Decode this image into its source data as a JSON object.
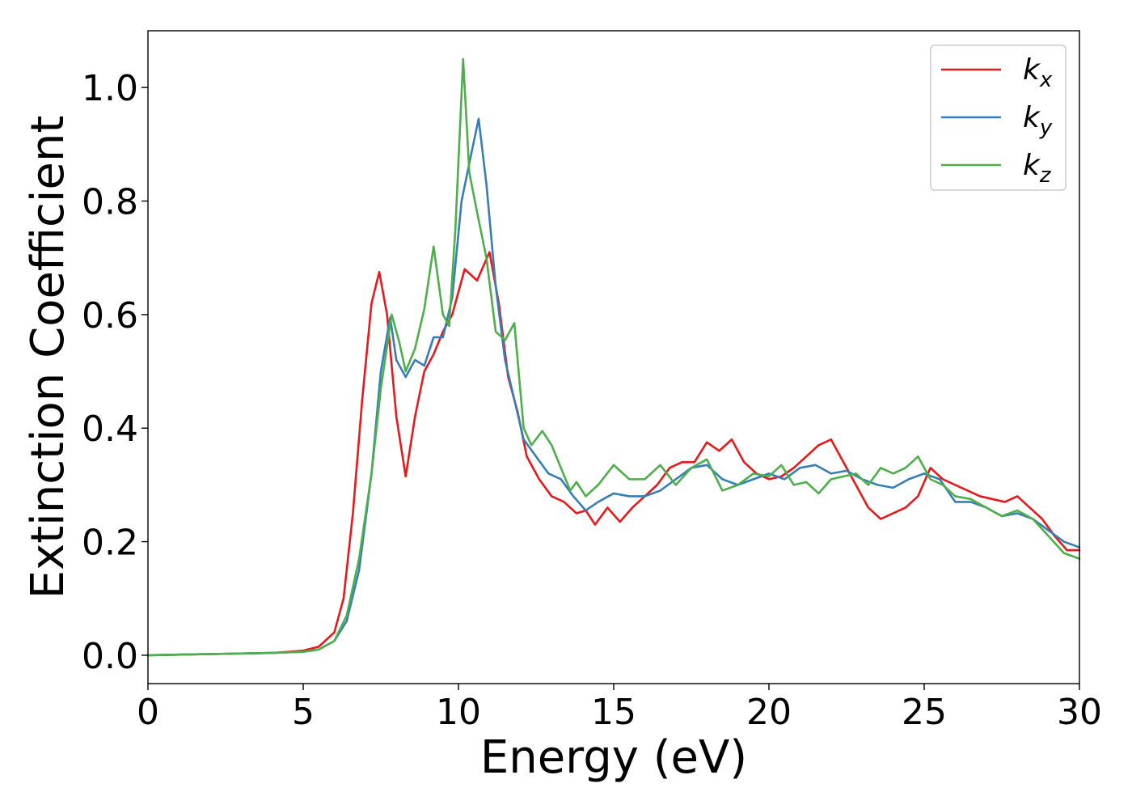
{
  "chart_data": {
    "type": "line",
    "title": "",
    "xlabel": "Energy (eV)",
    "ylabel": "Extinction Coefficient",
    "xlim": [
      0,
      30
    ],
    "ylim": [
      -0.05,
      1.1
    ],
    "xticks": [
      0,
      5,
      10,
      15,
      20,
      25,
      30
    ],
    "xtick_labels": [
      "0",
      "5",
      "10",
      "15",
      "20",
      "25",
      "30"
    ],
    "yticks": [
      0.0,
      0.2,
      0.4,
      0.6,
      0.8,
      1.0
    ],
    "ytick_labels": [
      "0.0",
      "0.2",
      "0.4",
      "0.6",
      "0.8",
      "1.0"
    ],
    "grid": false,
    "legend_position": "top-right",
    "series": [
      {
        "name": "k_x",
        "legend_main": "k",
        "legend_sub": "x",
        "color": "#e41a1c",
        "x": [
          0,
          2,
          4,
          5,
          5.5,
          6.0,
          6.3,
          6.6,
          6.9,
          7.2,
          7.45,
          7.7,
          8.0,
          8.3,
          8.6,
          8.9,
          9.2,
          9.5,
          9.8,
          10.2,
          10.6,
          11.0,
          11.3,
          11.6,
          11.9,
          12.2,
          12.6,
          13.0,
          13.4,
          13.8,
          14.1,
          14.4,
          14.8,
          15.2,
          15.6,
          16.0,
          16.4,
          16.8,
          17.2,
          17.6,
          18.0,
          18.4,
          18.8,
          19.2,
          19.6,
          20.0,
          20.4,
          20.8,
          21.2,
          21.6,
          22.0,
          22.4,
          22.8,
          23.2,
          23.6,
          24.0,
          24.4,
          24.8,
          25.2,
          25.6,
          26.0,
          26.4,
          26.8,
          27.2,
          27.6,
          28.0,
          28.4,
          28.8,
          29.2,
          29.6,
          30.0
        ],
        "y": [
          0.0,
          0.002,
          0.004,
          0.008,
          0.015,
          0.04,
          0.1,
          0.25,
          0.45,
          0.62,
          0.675,
          0.6,
          0.42,
          0.315,
          0.42,
          0.5,
          0.53,
          0.57,
          0.6,
          0.68,
          0.66,
          0.71,
          0.62,
          0.49,
          0.43,
          0.35,
          0.31,
          0.28,
          0.27,
          0.25,
          0.255,
          0.23,
          0.26,
          0.235,
          0.26,
          0.28,
          0.3,
          0.33,
          0.34,
          0.34,
          0.375,
          0.36,
          0.38,
          0.34,
          0.32,
          0.31,
          0.315,
          0.33,
          0.35,
          0.37,
          0.38,
          0.34,
          0.3,
          0.26,
          0.24,
          0.25,
          0.26,
          0.28,
          0.33,
          0.31,
          0.3,
          0.29,
          0.28,
          0.275,
          0.27,
          0.28,
          0.26,
          0.24,
          0.21,
          0.185,
          0.185
        ]
      },
      {
        "name": "k_y",
        "legend_main": "k",
        "legend_sub": "y",
        "color": "#377eb8",
        "x": [
          0,
          2,
          4,
          5,
          5.5,
          6.0,
          6.4,
          6.8,
          7.2,
          7.5,
          7.8,
          8.0,
          8.3,
          8.6,
          8.9,
          9.2,
          9.5,
          9.8,
          10.1,
          10.4,
          10.65,
          10.9,
          11.2,
          11.5,
          11.8,
          12.1,
          12.5,
          12.9,
          13.3,
          13.7,
          14.1,
          14.5,
          15.0,
          15.5,
          16.0,
          16.5,
          17.0,
          17.5,
          18.0,
          18.5,
          19.0,
          19.5,
          20.0,
          20.5,
          21.0,
          21.5,
          22.0,
          22.5,
          23.0,
          23.5,
          24.0,
          24.5,
          25.0,
          25.5,
          26.0,
          26.5,
          27.0,
          27.5,
          28.0,
          28.5,
          29.0,
          29.5,
          30.0
        ],
        "y": [
          0.0,
          0.002,
          0.004,
          0.006,
          0.01,
          0.025,
          0.06,
          0.15,
          0.32,
          0.5,
          0.595,
          0.52,
          0.49,
          0.52,
          0.51,
          0.56,
          0.56,
          0.63,
          0.8,
          0.88,
          0.945,
          0.83,
          0.65,
          0.52,
          0.45,
          0.38,
          0.35,
          0.32,
          0.31,
          0.28,
          0.255,
          0.27,
          0.285,
          0.28,
          0.28,
          0.29,
          0.31,
          0.33,
          0.335,
          0.31,
          0.3,
          0.31,
          0.32,
          0.31,
          0.33,
          0.335,
          0.32,
          0.325,
          0.31,
          0.3,
          0.295,
          0.31,
          0.32,
          0.31,
          0.27,
          0.27,
          0.26,
          0.245,
          0.25,
          0.24,
          0.22,
          0.2,
          0.19
        ]
      },
      {
        "name": "k_z",
        "legend_main": "k",
        "legend_sub": "z",
        "color": "#4daf4a",
        "x": [
          0,
          2,
          4,
          5,
          5.5,
          6.0,
          6.4,
          6.8,
          7.2,
          7.5,
          7.85,
          8.1,
          8.3,
          8.6,
          8.9,
          9.2,
          9.5,
          9.7,
          9.9,
          10.15,
          10.35,
          10.6,
          10.9,
          11.2,
          11.5,
          11.8,
          12.1,
          12.35,
          12.7,
          13.0,
          13.3,
          13.6,
          13.8,
          14.1,
          14.5,
          15.0,
          15.5,
          16.0,
          16.5,
          17.0,
          17.5,
          18.0,
          18.5,
          19.0,
          19.5,
          20.0,
          20.4,
          20.8,
          21.2,
          21.6,
          22.0,
          22.4,
          22.8,
          23.2,
          23.6,
          24.0,
          24.4,
          24.8,
          25.2,
          25.6,
          26.0,
          26.5,
          27.0,
          27.5,
          28.0,
          28.5,
          29.0,
          29.5,
          30.0
        ],
        "y": [
          0.0,
          0.002,
          0.004,
          0.006,
          0.01,
          0.025,
          0.07,
          0.17,
          0.32,
          0.47,
          0.6,
          0.55,
          0.5,
          0.54,
          0.61,
          0.72,
          0.6,
          0.58,
          0.75,
          1.05,
          0.85,
          0.78,
          0.7,
          0.57,
          0.555,
          0.585,
          0.4,
          0.37,
          0.395,
          0.37,
          0.33,
          0.29,
          0.305,
          0.28,
          0.3,
          0.335,
          0.31,
          0.31,
          0.335,
          0.3,
          0.33,
          0.345,
          0.29,
          0.3,
          0.32,
          0.315,
          0.335,
          0.3,
          0.305,
          0.285,
          0.31,
          0.315,
          0.32,
          0.3,
          0.33,
          0.32,
          0.33,
          0.35,
          0.31,
          0.3,
          0.28,
          0.275,
          0.26,
          0.245,
          0.255,
          0.24,
          0.21,
          0.18,
          0.17
        ]
      }
    ]
  }
}
